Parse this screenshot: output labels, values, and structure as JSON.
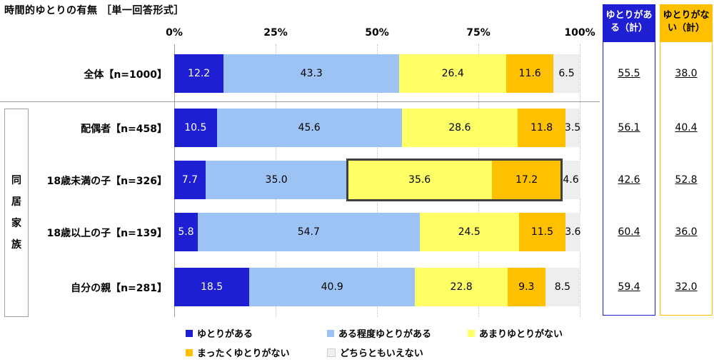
{
  "title": "時間的ゆとりの有無 ［単一回答形式］",
  "colors": {
    "c1": "#1e1ed2",
    "c2": "#9dc3f5",
    "c3": "#ffff66",
    "c4": "#ffc000",
    "c5": "#eeeeee",
    "sum_blue": "#1e1ed2",
    "sum_gold": "#ffc000"
  },
  "group_label": [
    "同",
    "居",
    "家",
    "族"
  ],
  "summary_headers": [
    "ゆとりがある（計）",
    "ゆとりがない（計）"
  ],
  "chart_data": {
    "type": "bar",
    "orientation": "horizontal",
    "stacked": true,
    "x_ticks": [
      "0%",
      "25%",
      "50%",
      "75%",
      "100%"
    ],
    "xlim": [
      0,
      100
    ],
    "categories": [
      "全体【n=1000】",
      "配偶者【n=458】",
      "18歳未満の子【n=326】",
      "18歳以上の子【n=139】",
      "自分の親【n=281】"
    ],
    "series": [
      {
        "name": "ゆとりがある",
        "values": [
          12.2,
          10.5,
          7.7,
          5.8,
          18.5
        ]
      },
      {
        "name": "ある程度ゆとりがある",
        "values": [
          43.3,
          45.6,
          35.0,
          54.7,
          40.9
        ]
      },
      {
        "name": "あまりゆとりがない",
        "values": [
          26.4,
          28.6,
          35.6,
          24.5,
          22.8
        ]
      },
      {
        "name": "まったくゆとりがない",
        "values": [
          11.6,
          11.8,
          17.2,
          11.5,
          9.3
        ]
      },
      {
        "name": "どちらともいえない",
        "values": [
          6.5,
          3.5,
          4.6,
          3.6,
          8.5
        ]
      }
    ],
    "labels": [
      [
        "12.2",
        "43.3",
        "26.4",
        "11.6",
        "6.5"
      ],
      [
        "10.5",
        "45.6",
        "28.6",
        "11.8",
        "3.5"
      ],
      [
        "7.7",
        "35.0",
        "35.6",
        "17.2",
        "4.6"
      ],
      [
        "5.8",
        "54.7",
        "24.5",
        "11.5",
        "3.6"
      ],
      [
        "18.5",
        "40.9",
        "22.8",
        "9.3",
        "8.5"
      ]
    ],
    "summary_yes": [
      "55.5",
      "56.1",
      "42.6",
      "60.4",
      "59.4"
    ],
    "summary_no": [
      "38.0",
      "40.4",
      "52.8",
      "36.0",
      "32.0"
    ],
    "highlight": {
      "row": 2,
      "series": [
        2,
        3
      ]
    },
    "legend_position": "bottom"
  }
}
